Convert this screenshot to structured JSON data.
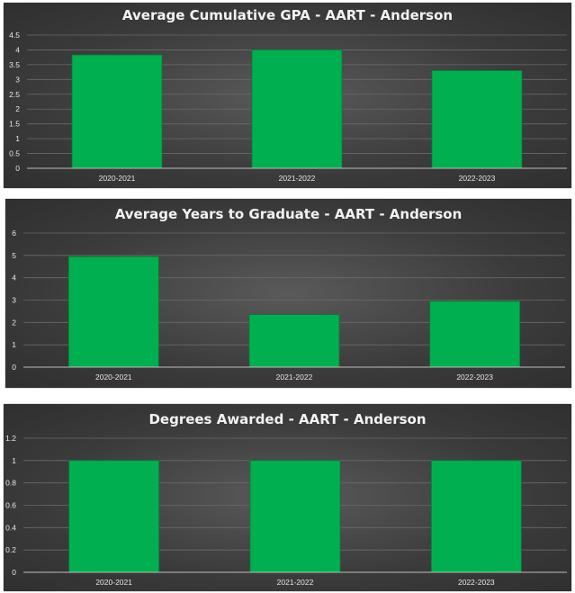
{
  "colors": {
    "bar": "#00b050"
  },
  "chart_data": [
    {
      "type": "bar",
      "title": "Average Cumulative GPA - AART - Anderson",
      "categories": [
        "2020-2021",
        "2021-2022",
        "2022-2023"
      ],
      "values": [
        3.83,
        4.0,
        3.3
      ],
      "ylim": [
        0,
        4.5
      ],
      "yticks": [
        0,
        0.5,
        1,
        1.5,
        2,
        2.5,
        3,
        3.5,
        4,
        4.5
      ],
      "ytick_labels": [
        "0",
        "0.5",
        "1",
        "1.5",
        "2",
        "2.5",
        "3",
        "3.5",
        "4",
        "4.5"
      ],
      "grid": true
    },
    {
      "type": "bar",
      "title": "Average Years to Graduate - AART - Anderson",
      "categories": [
        "2020-2021",
        "2021-2022",
        "2022-2023"
      ],
      "values": [
        4.95,
        2.35,
        2.95
      ],
      "ylim": [
        0,
        6
      ],
      "yticks": [
        0,
        1,
        2,
        3,
        4,
        5,
        6
      ],
      "ytick_labels": [
        "0",
        "1",
        "2",
        "3",
        "4",
        "5",
        "6"
      ],
      "grid": true
    },
    {
      "type": "bar",
      "title": "Degrees Awarded - AART - Anderson",
      "categories": [
        "2020-2021",
        "2021-2022",
        "2022-2023"
      ],
      "values": [
        1,
        1,
        1
      ],
      "ylim": [
        0,
        1.2
      ],
      "yticks": [
        0,
        0.2,
        0.4,
        0.6,
        0.8,
        1,
        1.2
      ],
      "ytick_labels": [
        "0",
        "0.2",
        "0.4",
        "0.6",
        "0.8",
        "1",
        "1.2"
      ],
      "grid": true
    }
  ]
}
